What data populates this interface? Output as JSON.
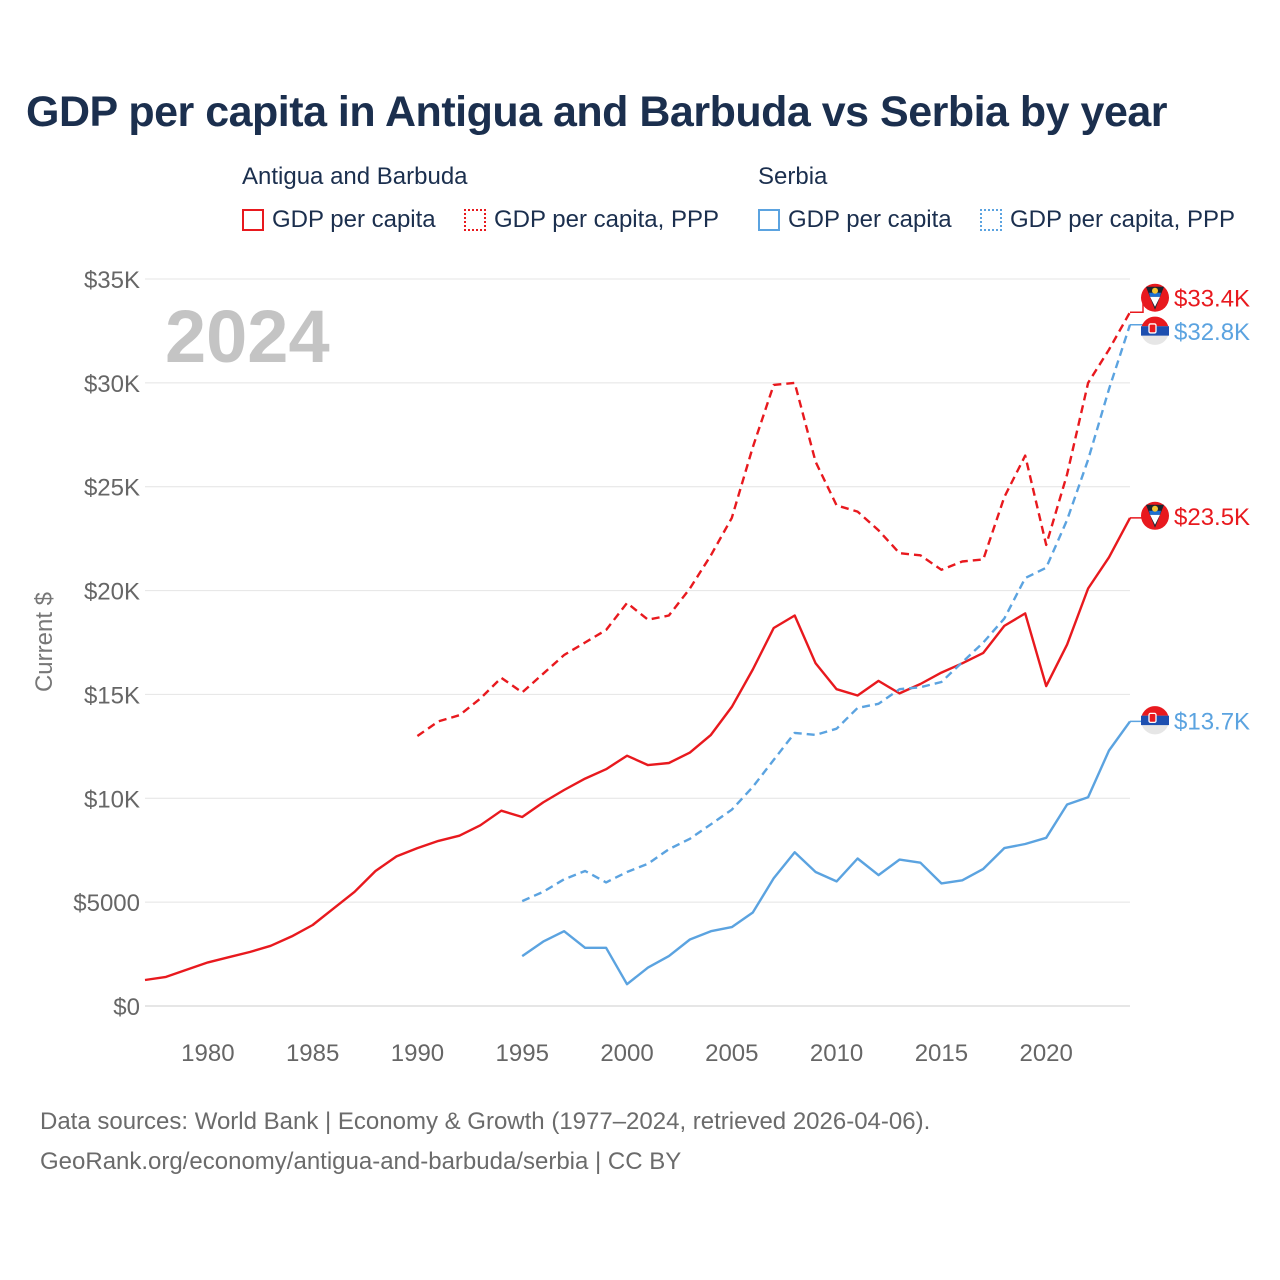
{
  "chart_data": {
    "type": "line",
    "title": "GDP per capita in Antigua and Barbuda vs Serbia by year",
    "ylabel": "Current $",
    "xlabel": "",
    "ylim": [
      0,
      35000
    ],
    "xlim": [
      1977,
      2024
    ],
    "year_label": "2024",
    "y_ticks": [
      {
        "value": 0,
        "label": "$0"
      },
      {
        "value": 5000,
        "label": "$5000"
      },
      {
        "value": 10000,
        "label": "$10K"
      },
      {
        "value": 15000,
        "label": "$15K"
      },
      {
        "value": 20000,
        "label": "$20K"
      },
      {
        "value": 25000,
        "label": "$25K"
      },
      {
        "value": 30000,
        "label": "$30K"
      },
      {
        "value": 35000,
        "label": "$35K"
      }
    ],
    "x_ticks": [
      1980,
      1985,
      1990,
      1995,
      2000,
      2005,
      2010,
      2015,
      2020
    ],
    "legend_groups": [
      {
        "country": "Antigua and Barbuda",
        "items": [
          "GDP per capita",
          "GDP per capita, PPP"
        ],
        "color": "#e8191e"
      },
      {
        "country": "Serbia",
        "items": [
          "GDP per capita",
          "GDP per capita, PPP"
        ],
        "color": "#5ba3e0"
      }
    ],
    "series": [
      {
        "name": "Antigua and Barbuda GDP per capita, PPP",
        "color": "#e8191e",
        "style": "dashed",
        "flag": "antigua",
        "end_label": "$33.4K",
        "label_value": 34100,
        "x": [
          1990,
          1991,
          1992,
          1993,
          1994,
          1995,
          1996,
          1997,
          1998,
          1999,
          2000,
          2001,
          2002,
          2003,
          2004,
          2005,
          2006,
          2007,
          2008,
          2009,
          2010,
          2011,
          2012,
          2013,
          2014,
          2015,
          2016,
          2017,
          2018,
          2019,
          2020,
          2021,
          2022,
          2023,
          2024
        ],
        "values": [
          13000,
          13700,
          14000,
          14800,
          15800,
          15100,
          16000,
          16900,
          17500,
          18100,
          19400,
          18600,
          18800,
          20100,
          21700,
          23500,
          26900,
          29900,
          30000,
          26200,
          24100,
          23800,
          22900,
          21800,
          21700,
          21000,
          21400,
          21500,
          24500,
          26500,
          22200,
          25600,
          30000,
          31600,
          33400
        ]
      },
      {
        "name": "Antigua and Barbuda GDP per capita",
        "color": "#e8191e",
        "style": "solid",
        "flag": "antigua",
        "end_label": "$23.5K",
        "label_value": 23600,
        "x": [
          1977,
          1978,
          1979,
          1980,
          1981,
          1982,
          1983,
          1984,
          1985,
          1986,
          1987,
          1988,
          1989,
          1990,
          1991,
          1992,
          1993,
          1994,
          1995,
          1996,
          1997,
          1998,
          1999,
          2000,
          2001,
          2002,
          2003,
          2004,
          2005,
          2006,
          2007,
          2008,
          2009,
          2010,
          2011,
          2012,
          2013,
          2014,
          2015,
          2016,
          2017,
          2018,
          2019,
          2020,
          2021,
          2022,
          2023,
          2024
        ],
        "values": [
          1250,
          1400,
          1750,
          2100,
          2350,
          2600,
          2900,
          3350,
          3900,
          4700,
          5500,
          6500,
          7200,
          7600,
          7950,
          8200,
          8700,
          9400,
          9100,
          9800,
          10400,
          10950,
          11400,
          12050,
          11600,
          11700,
          12200,
          13050,
          14400,
          16200,
          18200,
          18800,
          16500,
          15250,
          14950,
          15650,
          15050,
          15500,
          16050,
          16500,
          17000,
          18300,
          18900,
          15400,
          17400,
          20100,
          21600,
          23500
        ]
      },
      {
        "name": "Serbia GDP per capita, PPP",
        "color": "#5ba3e0",
        "style": "dashed",
        "flag": "serbia",
        "end_label": "$32.8K",
        "label_value": 32500,
        "x": [
          1995,
          1996,
          1997,
          1998,
          1999,
          2000,
          2001,
          2002,
          2003,
          2004,
          2005,
          2006,
          2007,
          2008,
          2009,
          2010,
          2011,
          2012,
          2013,
          2014,
          2015,
          2016,
          2017,
          2018,
          2019,
          2020,
          2021,
          2022,
          2023,
          2024
        ],
        "values": [
          5050,
          5500,
          6100,
          6500,
          5950,
          6450,
          6850,
          7550,
          8050,
          8750,
          9450,
          10550,
          11850,
          13150,
          13050,
          13350,
          14350,
          14550,
          15250,
          15350,
          15600,
          16550,
          17500,
          18650,
          20600,
          21100,
          23400,
          26300,
          29700,
          32800
        ]
      },
      {
        "name": "Serbia GDP per capita",
        "color": "#5ba3e0",
        "style": "solid",
        "flag": "serbia",
        "end_label": "$13.7K",
        "label_value": 13750,
        "x": [
          1995,
          1996,
          1997,
          1998,
          1999,
          2000,
          2001,
          2002,
          2003,
          2004,
          2005,
          2006,
          2007,
          2008,
          2009,
          2010,
          2011,
          2012,
          2013,
          2014,
          2015,
          2016,
          2017,
          2018,
          2019,
          2020,
          2021,
          2022,
          2023,
          2024
        ],
        "values": [
          2400,
          3100,
          3600,
          2800,
          2800,
          1050,
          1850,
          2400,
          3200,
          3600,
          3800,
          4500,
          6150,
          7400,
          6450,
          6000,
          7100,
          6300,
          7050,
          6900,
          5900,
          6050,
          6600,
          7600,
          7800,
          8100,
          9700,
          10050,
          12300,
          13700
        ]
      }
    ]
  },
  "footer": {
    "line1": "Data sources: World Bank | Economy & Growth (1977–2024, retrieved 2026-04-06).",
    "line2": "GeoRank.org/economy/antigua-and-barbuda/serbia | CC BY"
  }
}
